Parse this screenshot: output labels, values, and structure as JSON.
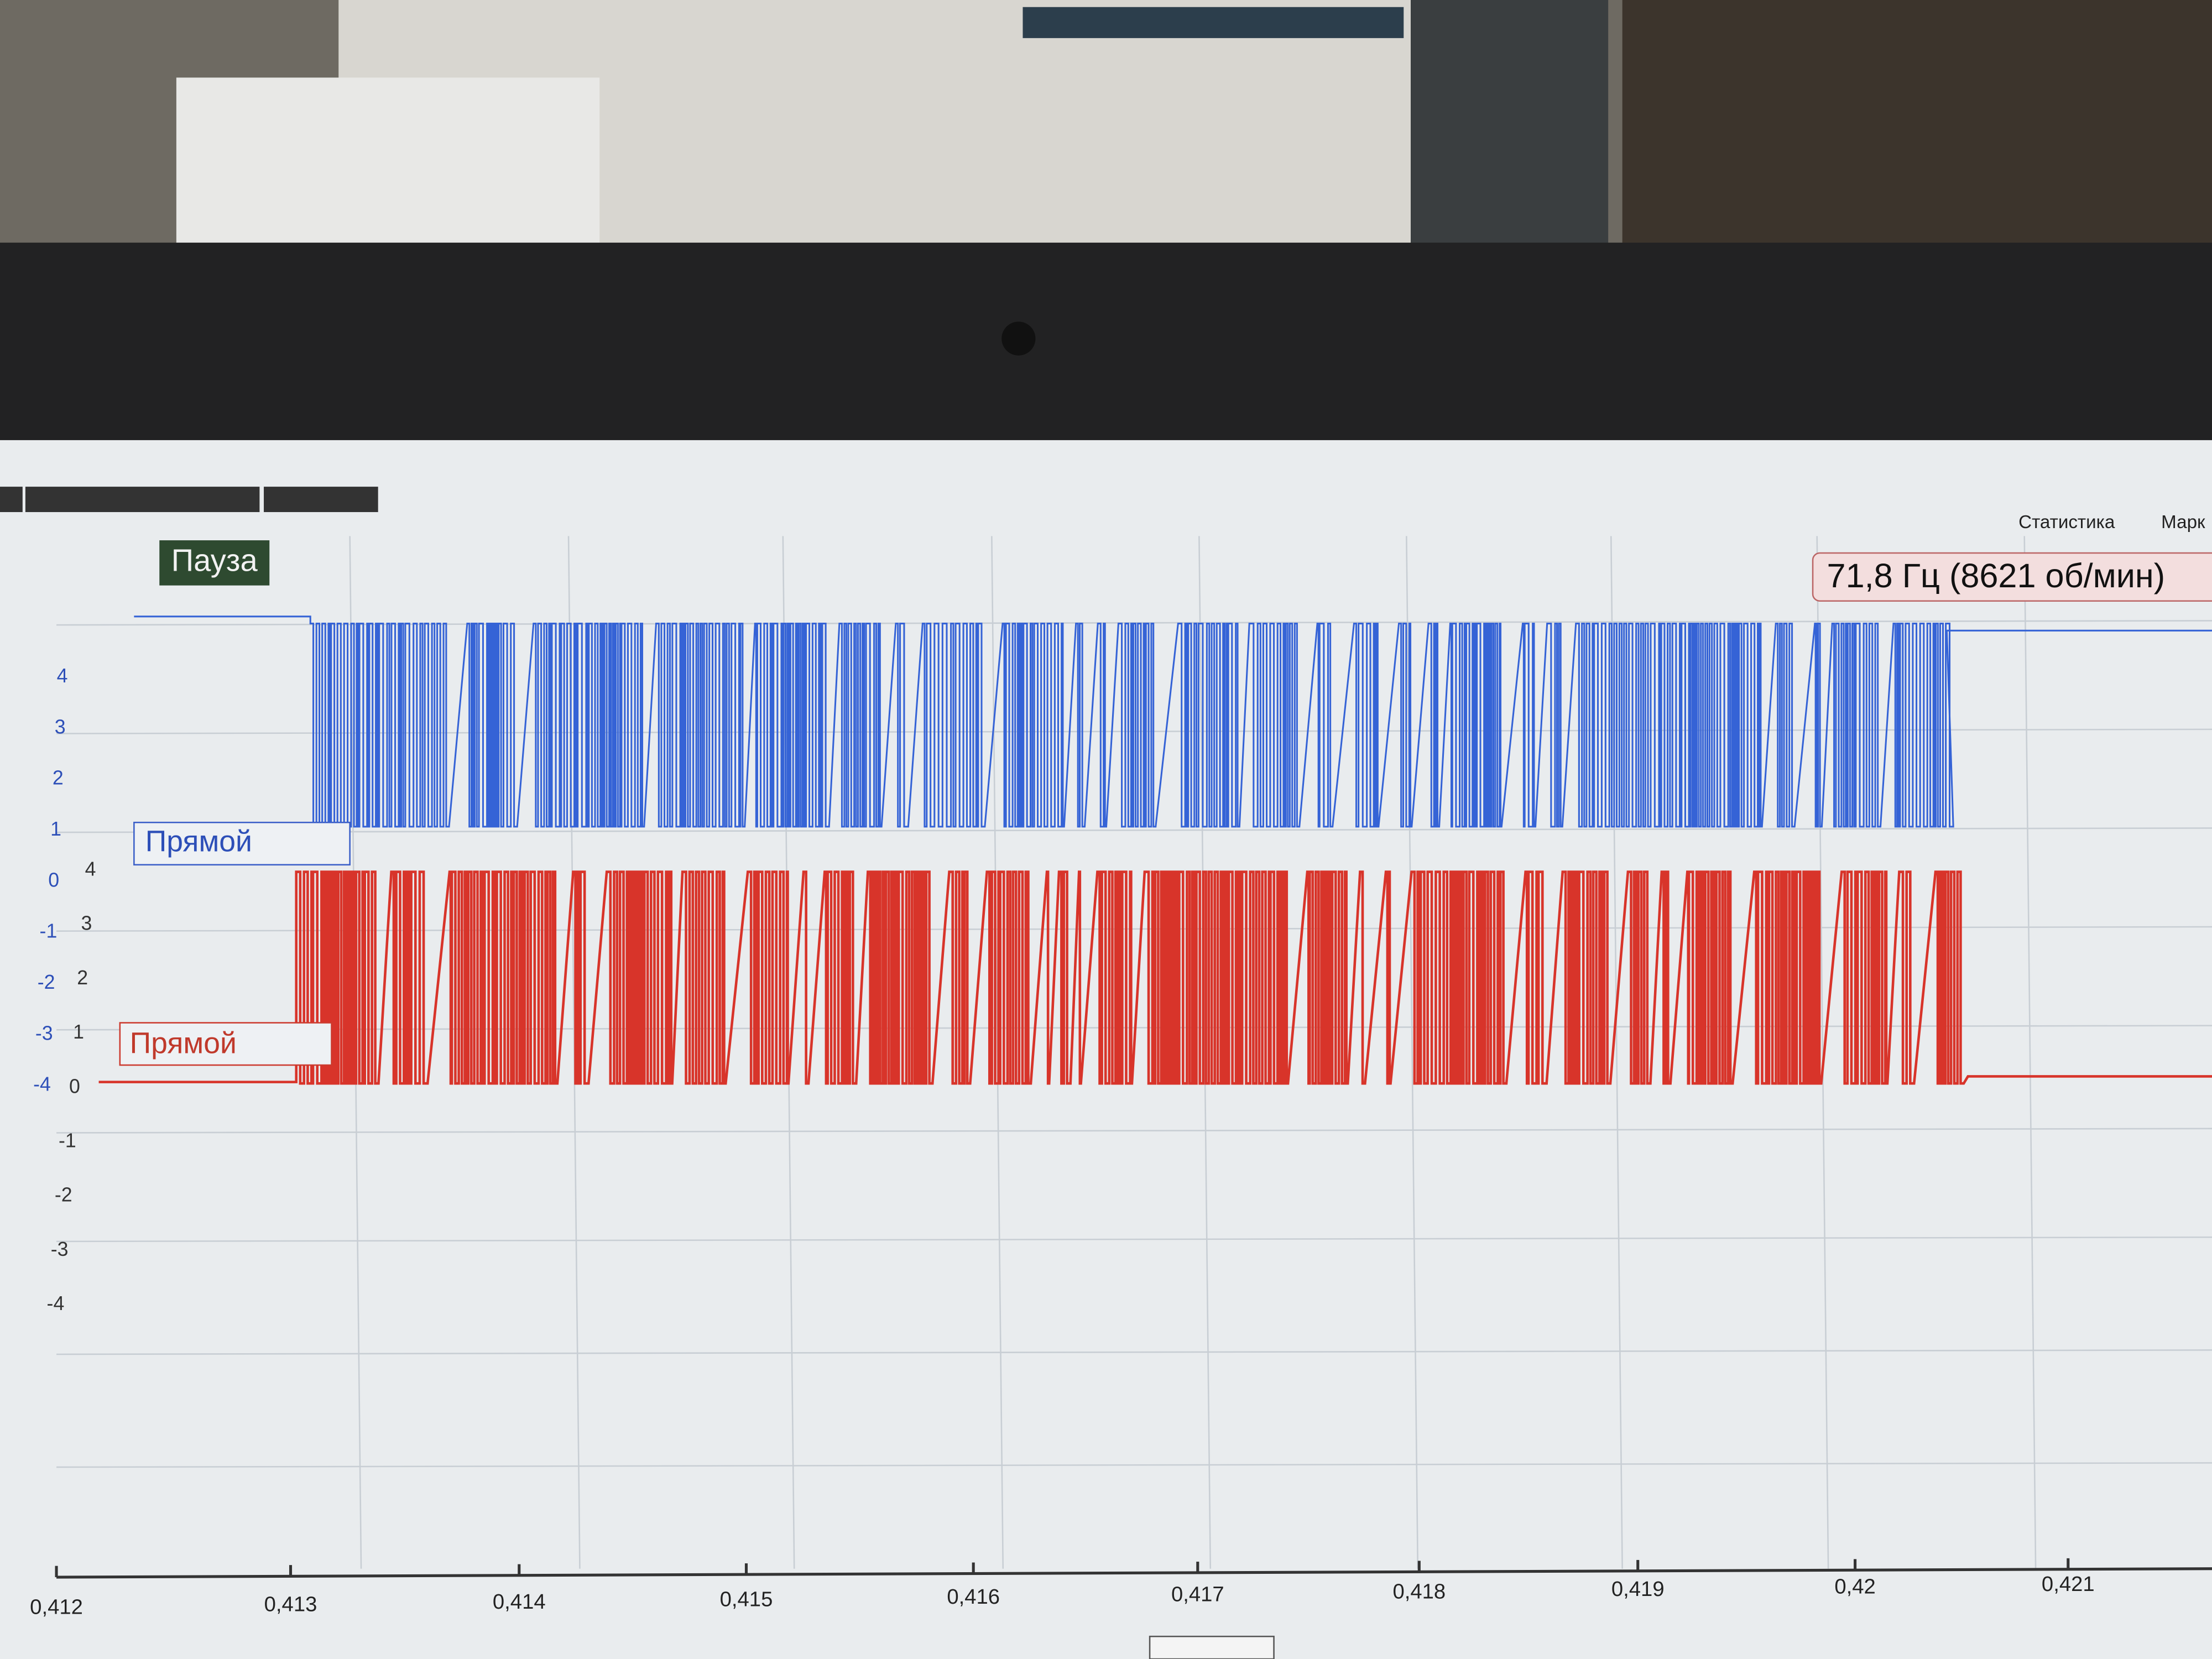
{
  "toolbar": {
    "pause_button": "Пауза",
    "tabs": [
      "Статистика",
      "Марк"
    ]
  },
  "measurement": "71,8 Гц (8621 об/мин)",
  "channels": [
    {
      "label": "Прямой",
      "ticks": [
        "4",
        "3",
        "2",
        "1",
        "0",
        "-1",
        "-2",
        "-3",
        "-4"
      ]
    },
    {
      "label": "Прямой",
      "ticks": [
        "4",
        "3",
        "2",
        "1",
        "0",
        "-1",
        "-2",
        "-3",
        "-4"
      ]
    }
  ],
  "x_axis": {
    "ticks": [
      "0,412",
      "0,413",
      "0,414",
      "0,415",
      "0,416",
      "0,417",
      "0,418",
      "0,419",
      "0,42",
      "0,421"
    ]
  }
}
